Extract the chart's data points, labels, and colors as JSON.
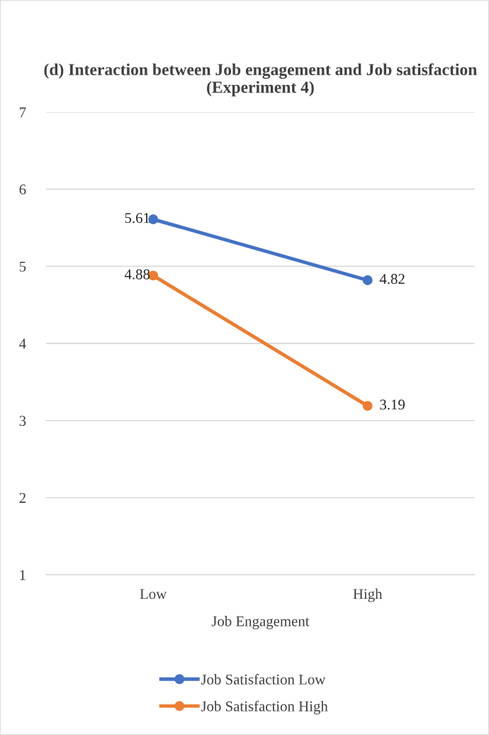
{
  "chart_data": {
    "type": "line",
    "title": "(d) Interaction between Job engagement and Job satisfaction (Experiment 4)",
    "xlabel": "Job Engagement",
    "categories": [
      "Low",
      "High"
    ],
    "series": [
      {
        "name": "Job Satisfaction Low",
        "color": "#4472c4",
        "values": [
          5.61,
          4.82
        ]
      },
      {
        "name": "Job Satisfaction High",
        "color": "#ed7d31",
        "values": [
          4.88,
          3.19
        ]
      }
    ],
    "ylim": [
      1,
      7
    ],
    "yticks": [
      1,
      2,
      3,
      4,
      5,
      6,
      7
    ],
    "grid": "y",
    "legend": "bottom",
    "marker": "circle",
    "line_style": "solid",
    "data_labels": true
  }
}
